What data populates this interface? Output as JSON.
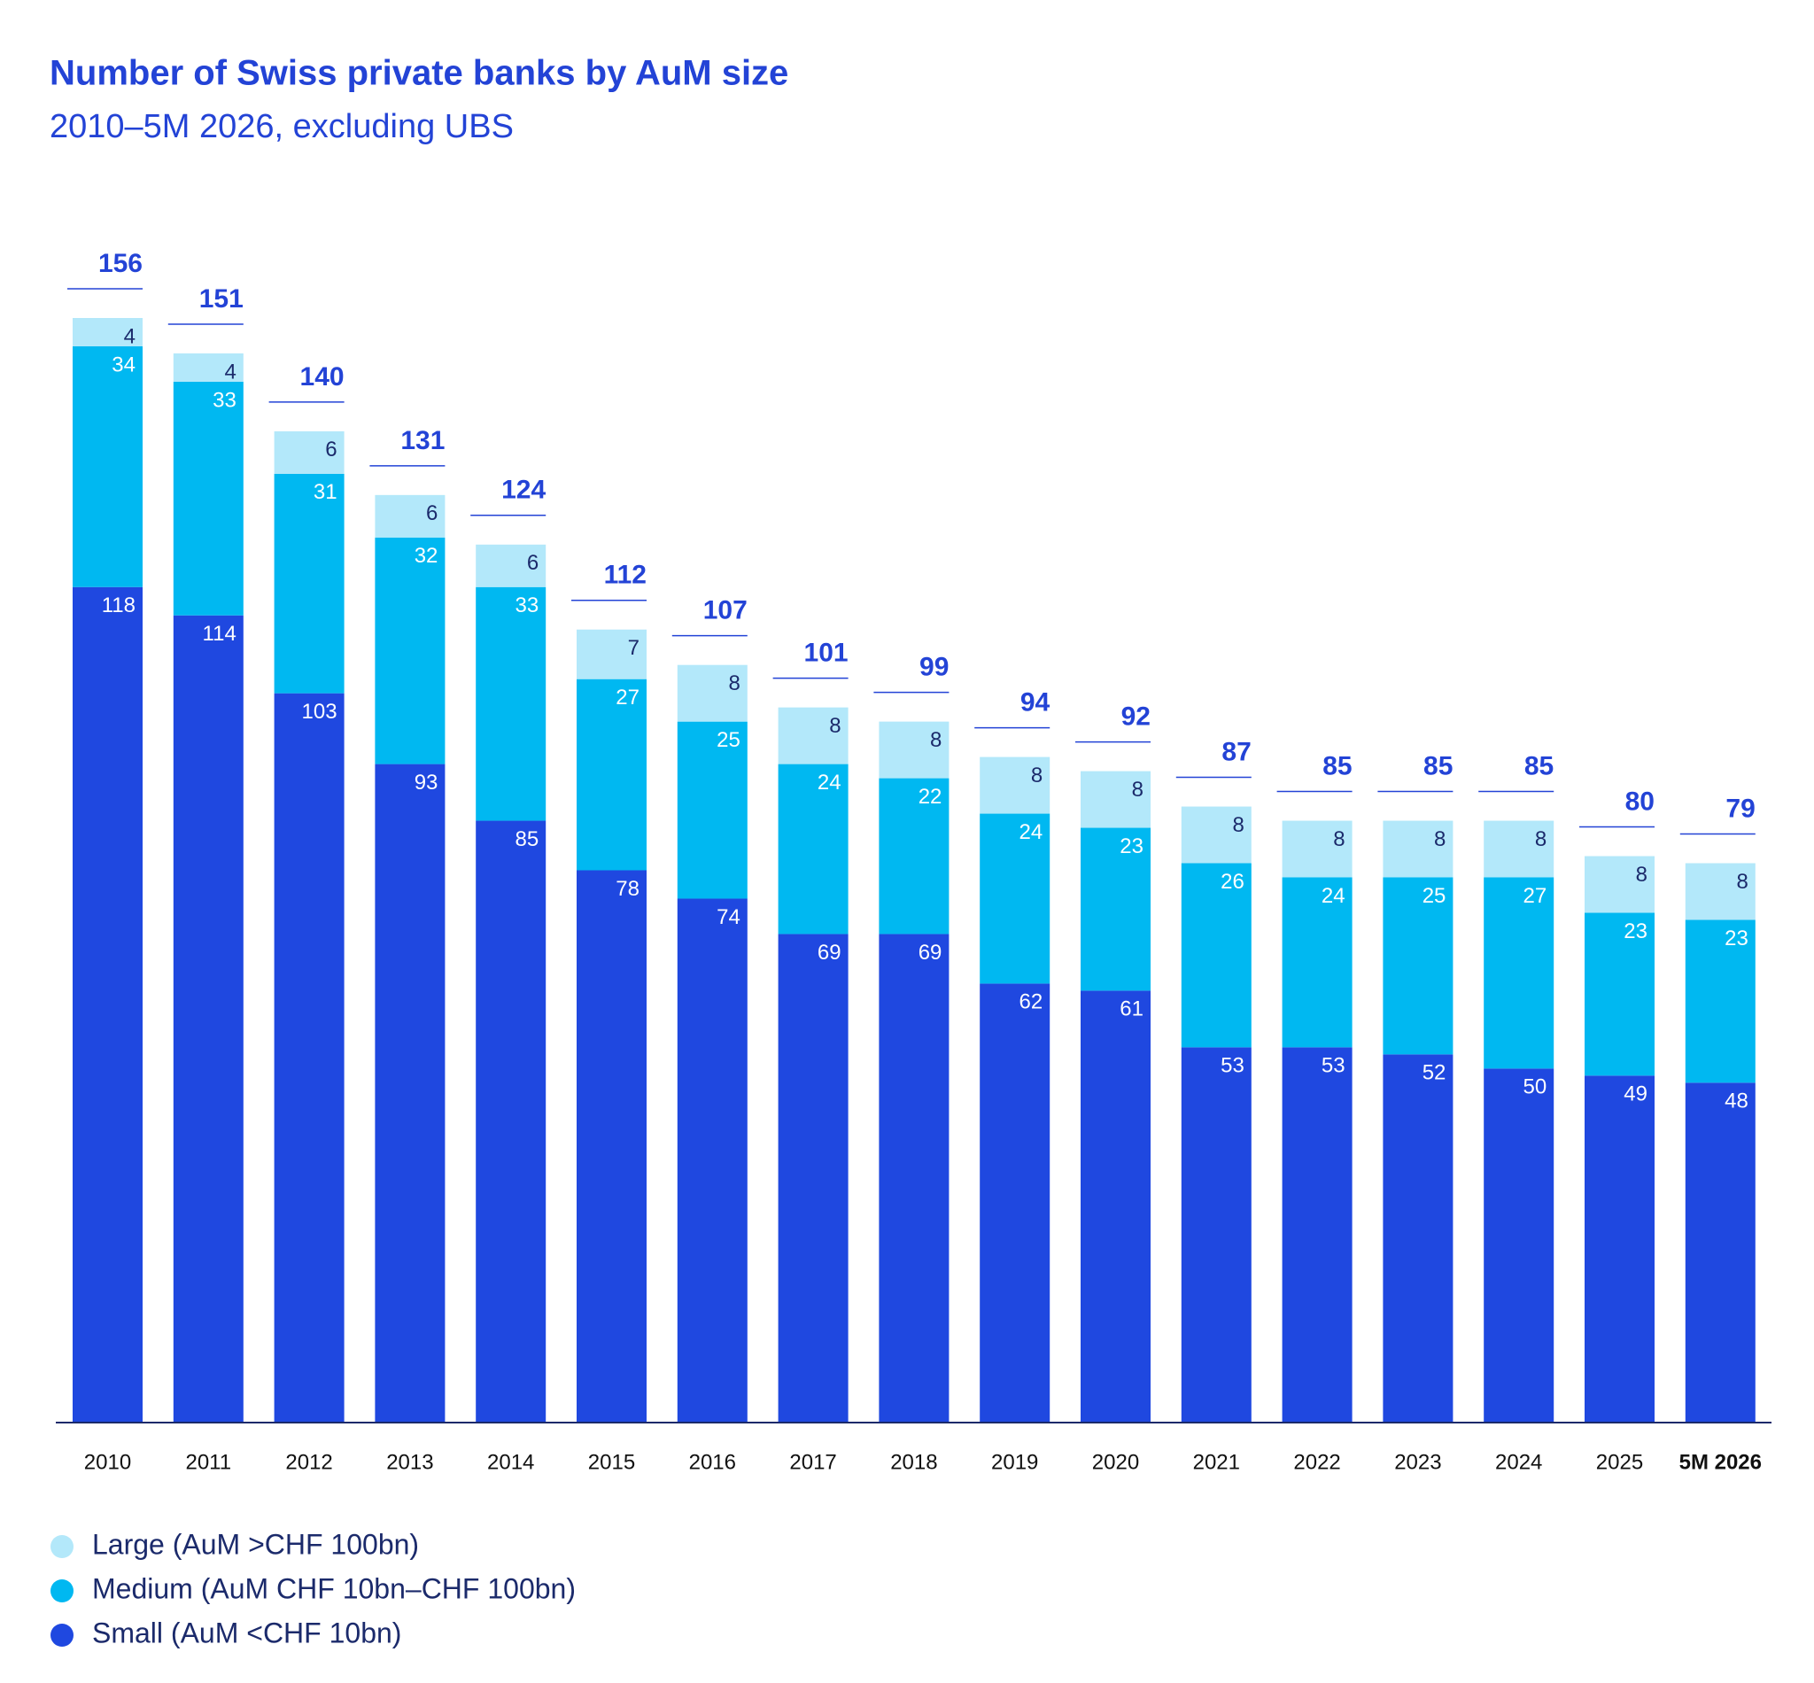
{
  "chart_data": {
    "type": "stacked-bar",
    "title": "Number of Swiss private banks by AuM size",
    "subtitle": "2010–5M 2026, excluding UBS",
    "categories": [
      "2010",
      "2011",
      "2012",
      "2013",
      "2014",
      "2015",
      "2016",
      "2017",
      "2018",
      "2019",
      "2020",
      "2021",
      "2022",
      "2023",
      "2024",
      "2025",
      "5M 2026"
    ],
    "series": [
      {
        "name": "Small (AuM <CHF 10bn)",
        "color": "#1f48e0",
        "values": [
          118,
          114,
          103,
          93,
          85,
          78,
          74,
          69,
          69,
          62,
          61,
          53,
          53,
          52,
          50,
          49,
          48
        ]
      },
      {
        "name": "Medium (AuM CHF 10bn–CHF 100bn)",
        "color": "#00b8f1",
        "values": [
          34,
          33,
          31,
          32,
          33,
          27,
          25,
          24,
          22,
          24,
          23,
          26,
          24,
          25,
          27,
          23,
          23
        ]
      },
      {
        "name": "Large (AuM >CHF 100bn)",
        "color": "#b3e8fa",
        "values": [
          4,
          4,
          6,
          6,
          6,
          7,
          8,
          8,
          8,
          8,
          8,
          8,
          8,
          8,
          8,
          8,
          8
        ]
      }
    ],
    "totals": [
      156,
      151,
      140,
      131,
      124,
      112,
      107,
      101,
      99,
      94,
      92,
      87,
      85,
      85,
      85,
      80,
      79
    ],
    "legend": "bottom-left"
  }
}
